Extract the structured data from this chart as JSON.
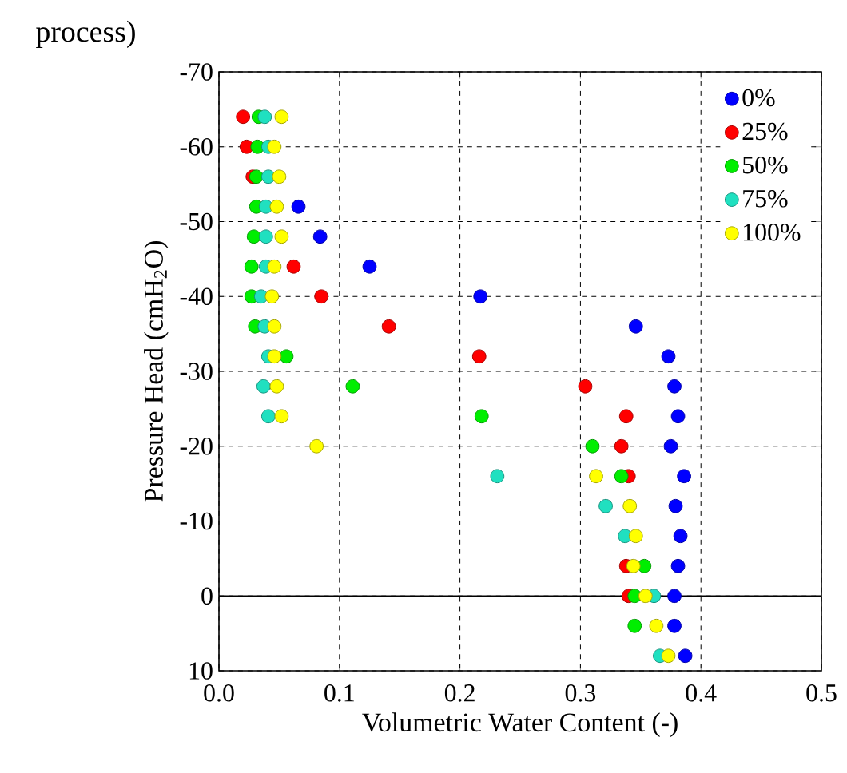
{
  "chart_data": {
    "type": "scatter",
    "title": "process)",
    "xlabel": "Volumetric Water Content (-)",
    "ylabel": "Pressure Head (cmH$_{2}$O)",
    "xlim": [
      0,
      0.5
    ],
    "xticks": [
      {
        "value": 0,
        "label": "0.0"
      },
      0.1,
      0.2,
      0.3,
      0.4,
      0.5
    ],
    "ylim": [
      10,
      -70
    ],
    "yticks": [
      10,
      0,
      -10,
      -20,
      -30,
      -40,
      -50,
      -60,
      -70
    ],
    "grid": true,
    "legend": "top right",
    "marker": "circle",
    "ref_lines": [
      {
        "axis": "y",
        "value": 0,
        "color": "#000000",
        "line_style": "solid"
      }
    ],
    "series": [
      {
        "name": "0%",
        "color": "#0000ff",
        "x": [
          0.066,
          0.084,
          0.125,
          0.217,
          0.346,
          0.373,
          0.378,
          0.381,
          0.375,
          0.386,
          0.379,
          0.383,
          0.381,
          0.378,
          0.378,
          0.387
        ],
        "values": [
          -52,
          -48,
          -44,
          -40,
          -36,
          -32,
          -28,
          -24,
          -20,
          -16,
          -12,
          -8,
          -4,
          0,
          4,
          8
        ]
      },
      {
        "name": "25%",
        "color": "#ff0000",
        "x": [
          0.02,
          0.023,
          0.028,
          0.062,
          0.085,
          0.141,
          0.216,
          0.304,
          0.338,
          0.334,
          0.34,
          0.338,
          0.34
        ],
        "values": [
          -64,
          -60,
          -56,
          -44,
          -40,
          -36,
          -32,
          -28,
          -24,
          -20,
          -16,
          -4,
          0
        ]
      },
      {
        "name": "50%",
        "color": "#00ee00",
        "x": [
          0.033,
          0.032,
          0.031,
          0.031,
          0.029,
          0.027,
          0.027,
          0.03,
          0.056,
          0.111,
          0.218,
          0.31,
          0.334,
          0.353,
          0.345,
          0.345
        ],
        "values": [
          -64,
          -60,
          -56,
          -52,
          -48,
          -44,
          -40,
          -36,
          -32,
          -28,
          -24,
          -20,
          -16,
          -4,
          0,
          4
        ]
      },
      {
        "name": "75%",
        "color": "#20e0c0",
        "x": [
          0.038,
          0.041,
          0.041,
          0.039,
          0.039,
          0.039,
          0.035,
          0.038,
          0.041,
          0.037,
          0.041,
          0.231,
          0.321,
          0.337,
          0.361,
          0.366
        ],
        "values": [
          -64,
          -60,
          -56,
          -52,
          -48,
          -44,
          -40,
          -36,
          -32,
          -28,
          -24,
          -16,
          -12,
          -8,
          0,
          8
        ]
      },
      {
        "name": "100%",
        "color": "#ffff00",
        "x": [
          0.052,
          0.046,
          0.05,
          0.048,
          0.052,
          0.046,
          0.044,
          0.046,
          0.046,
          0.048,
          0.052,
          0.081,
          0.313,
          0.341,
          0.346,
          0.344,
          0.354,
          0.363,
          0.373
        ],
        "values": [
          -64,
          -60,
          -56,
          -52,
          -48,
          -44,
          -40,
          -36,
          -32,
          -28,
          -24,
          -20,
          -16,
          -12,
          -8,
          -4,
          0,
          4,
          8
        ]
      }
    ]
  }
}
